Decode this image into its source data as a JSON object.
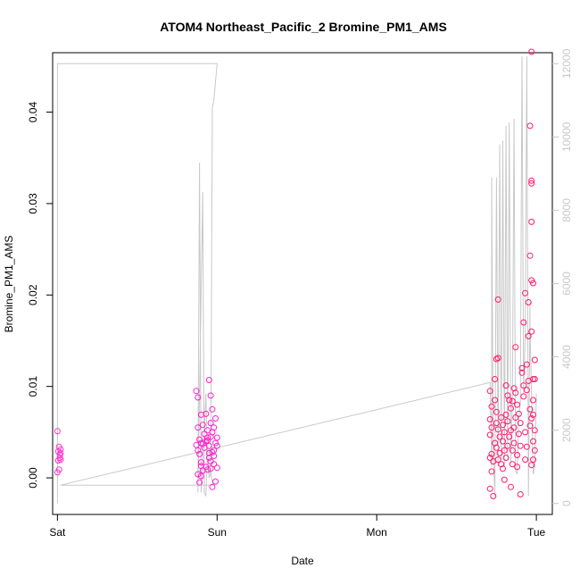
{
  "chart_data": {
    "type": "scatter",
    "title": "ATOM4 Northeast_Pacific_2 Bromine_PM1_AMS",
    "xlabel": "Date",
    "ylabel": "Bromine_PM1_AMS",
    "x_ticks": [
      "Sat",
      "Sun",
      "Mon",
      "Tue"
    ],
    "xlim": [
      -0.03,
      3.1
    ],
    "ylim": [
      -0.004,
      0.0465
    ],
    "y_ticks": [
      "0.00",
      "0.01",
      "0.02",
      "0.03",
      "0.04"
    ],
    "y2lim": [
      -300,
      12300
    ],
    "y2_ticks": [
      "0",
      "2000",
      "4000",
      "6000",
      "8000",
      "10000",
      "12000"
    ],
    "grid": false,
    "legend": "none",
    "colors": {
      "points_sat": "#ff33cc",
      "points_sun": "#ff22cc",
      "points_tue": "#ff1a6e",
      "line": "#c8c8c8",
      "axis": "#000000"
    },
    "series": [
      {
        "kind": "points",
        "values": [
          [
            0.0,
            0.0051
          ],
          [
            0.01,
            0.0034
          ],
          [
            0.02,
            0.0027
          ],
          [
            0.015,
            0.0022
          ],
          [
            0.005,
            0.0019
          ],
          [
            0.02,
            0.0031
          ],
          [
            0.01,
            0.0009
          ],
          [
            0.0,
            0.0006
          ],
          [
            0.015,
            0.0025
          ],
          [
            0.005,
            0.0029
          ],
          [
            0.02,
            0.002
          ],
          [
            0.87,
            0.0095
          ],
          [
            0.88,
            0.0088
          ],
          [
            0.9,
            0.0069
          ],
          [
            0.91,
            0.0058
          ],
          [
            0.88,
            0.0055
          ],
          [
            0.89,
            0.0042
          ],
          [
            0.9,
            0.0038
          ],
          [
            0.92,
            0.0033
          ],
          [
            0.88,
            0.003
          ],
          [
            0.87,
            0.0036
          ],
          [
            0.89,
            0.0026
          ],
          [
            0.9,
            0.0013
          ],
          [
            0.91,
            0.0008
          ],
          [
            0.88,
            0.0004
          ],
          [
            0.89,
            -0.0005
          ],
          [
            0.9,
            0.0002
          ],
          [
            0.93,
            0.007
          ],
          [
            0.94,
            0.0052
          ],
          [
            0.94,
            0.0044
          ],
          [
            0.95,
            0.0035
          ],
          [
            0.96,
            0.0045
          ],
          [
            0.97,
            0.005
          ],
          [
            0.98,
            0.0055
          ],
          [
            0.95,
            0.0022
          ],
          [
            0.96,
            0.001
          ],
          [
            0.97,
            -0.001
          ],
          [
            0.98,
            0.003
          ],
          [
            0.99,
            0.0038
          ],
          [
            0.94,
            0.0041
          ],
          [
            0.93,
            0.0012
          ],
          [
            0.95,
            0.0027
          ],
          [
            0.96,
            0.0018
          ],
          [
            0.95,
            0.0107
          ],
          [
            0.96,
            0.009
          ],
          [
            0.97,
            0.0075
          ],
          [
            0.99,
            0.0065
          ],
          [
            1.0,
            0.0044
          ],
          [
            1.0,
            0.0035
          ],
          [
            0.98,
            0.0015
          ],
          [
            0.99,
            -0.0004
          ],
          [
            0.92,
            0.0048
          ],
          [
            0.9,
            0.0017
          ],
          [
            0.97,
            0.0028
          ],
          [
            1.0,
            0.0011
          ],
          [
            0.93,
            0.004
          ],
          [
            0.98,
            0.0024
          ],
          [
            0.91,
            0.0037
          ],
          [
            0.96,
            0.006
          ],
          [
            0.94,
            0.0009
          ],
          [
            2.71,
            0.0095
          ],
          [
            2.72,
            0.0078
          ],
          [
            2.71,
            0.0064
          ],
          [
            2.72,
            0.0055
          ],
          [
            2.71,
            0.0047
          ],
          [
            2.72,
            0.0026
          ],
          [
            2.71,
            0.0022
          ],
          [
            2.73,
            0.0018
          ],
          [
            2.71,
            -0.0012
          ],
          [
            2.73,
            -0.002
          ],
          [
            2.72,
            0.0007
          ],
          [
            2.74,
            0.0108
          ],
          [
            2.75,
            0.013
          ],
          [
            2.76,
            0.0131
          ],
          [
            2.76,
            0.0195
          ],
          [
            2.74,
            0.0085
          ],
          [
            2.75,
            0.0072
          ],
          [
            2.75,
            0.006
          ],
          [
            2.76,
            0.0053
          ],
          [
            2.77,
            0.0045
          ],
          [
            2.74,
            0.0038
          ],
          [
            2.75,
            0.0033
          ],
          [
            2.77,
            0.0027
          ],
          [
            2.76,
            0.002
          ],
          [
            2.78,
            0.0015
          ],
          [
            2.78,
            0.0066
          ],
          [
            2.79,
            0.0058
          ],
          [
            2.79,
            0.004
          ],
          [
            2.8,
            0.005
          ],
          [
            2.8,
            0.003
          ],
          [
            2.81,
            0.0022
          ],
          [
            2.81,
            0.0069
          ],
          [
            2.82,
            0.0062
          ],
          [
            2.82,
            0.0035
          ],
          [
            2.83,
            0.0045
          ],
          [
            2.79,
            0.001
          ],
          [
            2.8,
            -0.0002
          ],
          [
            2.81,
            0.0101
          ],
          [
            2.82,
            0.009
          ],
          [
            2.83,
            0.0085
          ],
          [
            2.84,
            0.0076
          ],
          [
            2.84,
            0.0052
          ],
          [
            2.85,
            0.003
          ],
          [
            2.85,
            0.0015
          ],
          [
            2.86,
            0.0055
          ],
          [
            2.86,
            0.0038
          ],
          [
            2.87,
            0.0143
          ],
          [
            2.87,
            0.0066
          ],
          [
            2.88,
            0.0025
          ],
          [
            2.88,
            0.0012
          ],
          [
            2.84,
            -0.001
          ],
          [
            2.85,
            0.0084
          ],
          [
            2.86,
            0.0098
          ],
          [
            2.87,
            0.0093
          ],
          [
            2.88,
            0.008
          ],
          [
            2.89,
            0.007
          ],
          [
            2.89,
            0.0048
          ],
          [
            2.9,
            0.006
          ],
          [
            2.9,
            0.0035
          ],
          [
            2.91,
            0.0115
          ],
          [
            2.91,
            0.012
          ],
          [
            2.92,
            0.0101
          ],
          [
            2.92,
            0.0089
          ],
          [
            2.93,
            0.005
          ],
          [
            2.93,
            0.002
          ],
          [
            2.94,
            0.0034
          ],
          [
            2.9,
            -0.0018
          ],
          [
            2.92,
            0.017
          ],
          [
            2.93,
            0.0202
          ],
          [
            2.94,
            0.0124
          ],
          [
            2.94,
            0.0096
          ],
          [
            2.95,
            0.0155
          ],
          [
            2.95,
            0.0106
          ],
          [
            2.95,
            0.0192
          ],
          [
            2.96,
            0.0243
          ],
          [
            2.97,
            0.028
          ],
          [
            2.97,
            0.0216
          ],
          [
            2.97,
            0.016
          ],
          [
            2.98,
            0.0213
          ],
          [
            2.96,
            0.0075
          ],
          [
            2.97,
            0.0065
          ],
          [
            2.96,
            0.0385
          ],
          [
            2.97,
            0.0466
          ],
          [
            2.97,
            0.0325
          ],
          [
            2.97,
            0.0322
          ],
          [
            2.98,
            0.0108
          ],
          [
            2.98,
            0.0085
          ],
          [
            2.99,
            0.0129
          ],
          [
            2.98,
            0.0069
          ],
          [
            2.99,
            0.0052
          ],
          [
            2.98,
            0.004
          ],
          [
            2.99,
            0.003
          ],
          [
            2.99,
            0.0108
          ],
          [
            2.97,
            0.0014
          ],
          [
            2.98,
            0.002
          ],
          [
            2.96,
            0.0057
          ]
        ]
      },
      {
        "kind": "line",
        "axis": "y2",
        "values": [
          [
            0.0,
            0
          ],
          [
            0.0,
            12000
          ],
          [
            0.48,
            12000
          ],
          [
            0.98,
            12000
          ],
          [
            1.0,
            12000
          ],
          [
            0.98,
            11000
          ],
          [
            0.97,
            10800
          ],
          [
            0.97,
            10500
          ],
          [
            0.96,
            800
          ],
          [
            0.95,
            700
          ],
          [
            0.94,
            1200
          ],
          [
            0.93,
            3000
          ],
          [
            0.92,
            2000
          ],
          [
            0.9,
            300
          ],
          [
            0.89,
            9300
          ],
          [
            0.88,
            600
          ],
          [
            0.88,
            300
          ],
          [
            0.91,
            8500
          ],
          [
            0.92,
            300
          ],
          [
            0.93,
            200
          ],
          [
            0.94,
            1500
          ],
          [
            0.95,
            800
          ],
          [
            0.96,
            900
          ],
          [
            0.97,
            600
          ],
          [
            0.98,
            500
          ],
          [
            0.02,
            500
          ],
          [
            2.71,
            3300
          ],
          [
            2.72,
            1000
          ],
          [
            2.72,
            8900
          ],
          [
            2.73,
            1400
          ],
          [
            2.74,
            200
          ],
          [
            2.75,
            8900
          ],
          [
            2.76,
            1000
          ],
          [
            2.77,
            9800
          ],
          [
            2.78,
            1200
          ],
          [
            2.79,
            9900
          ],
          [
            2.8,
            1000
          ],
          [
            2.81,
            10300
          ],
          [
            2.82,
            1200
          ],
          [
            2.83,
            10400
          ],
          [
            2.84,
            1100
          ],
          [
            2.85,
            3000
          ],
          [
            2.86,
            10500
          ],
          [
            2.87,
            900
          ],
          [
            2.88,
            800
          ],
          [
            2.89,
            2300
          ],
          [
            2.9,
            2800
          ],
          [
            2.91,
            12200
          ],
          [
            2.92,
            3000
          ],
          [
            2.93,
            4700
          ],
          [
            2.94,
            12200
          ],
          [
            2.95,
            200
          ],
          [
            2.96,
            5500
          ],
          [
            2.96,
            4800
          ],
          [
            2.97,
            3000
          ],
          [
            2.98,
            800
          ],
          [
            2.99,
            1000
          ],
          [
            3.0,
            3000
          ]
        ]
      }
    ]
  }
}
